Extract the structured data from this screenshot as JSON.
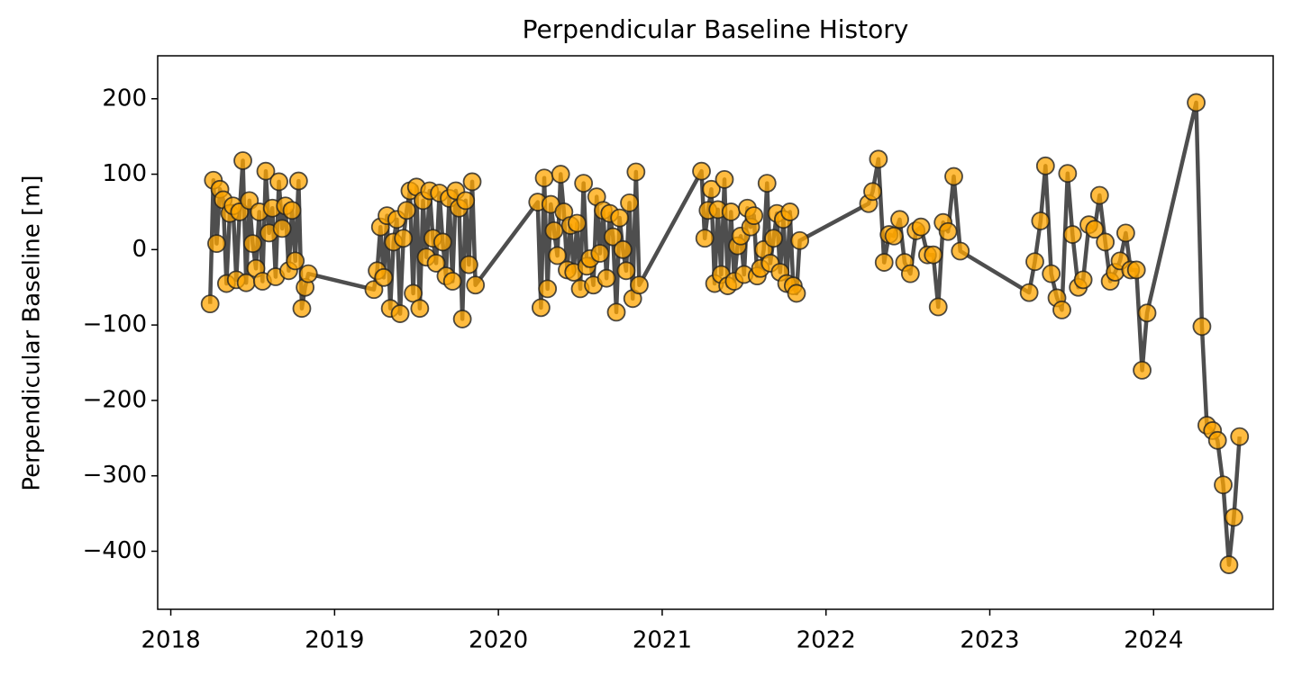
{
  "chart_data": {
    "type": "line",
    "title": "Perpendicular Baseline History",
    "y_label": "Perpendicular Baseline [m]",
    "x": [
      2018.24,
      2018.26,
      2018.28,
      2018.3,
      2018.32,
      2018.34,
      2018.36,
      2018.38,
      2018.4,
      2018.42,
      2018.44,
      2018.46,
      2018.48,
      2018.5,
      2018.52,
      2018.54,
      2018.56,
      2018.58,
      2018.6,
      2018.62,
      2018.64,
      2018.66,
      2018.68,
      2018.7,
      2018.72,
      2018.74,
      2018.76,
      2018.78,
      2018.8,
      2018.82,
      2018.84,
      2019.24,
      2019.26,
      2019.28,
      2019.3,
      2019.32,
      2019.34,
      2019.36,
      2019.38,
      2019.4,
      2019.42,
      2019.44,
      2019.46,
      2019.48,
      2019.5,
      2019.52,
      2019.54,
      2019.56,
      2019.58,
      2019.6,
      2019.62,
      2019.64,
      2019.66,
      2019.68,
      2019.7,
      2019.72,
      2019.74,
      2019.76,
      2019.78,
      2019.8,
      2019.82,
      2019.84,
      2019.86,
      2020.24,
      2020.26,
      2020.28,
      2020.3,
      2020.32,
      2020.34,
      2020.36,
      2020.38,
      2020.4,
      2020.42,
      2020.44,
      2020.46,
      2020.48,
      2020.5,
      2020.52,
      2020.54,
      2020.56,
      2020.58,
      2020.6,
      2020.62,
      2020.64,
      2020.66,
      2020.68,
      2020.7,
      2020.72,
      2020.74,
      2020.76,
      2020.78,
      2020.8,
      2020.82,
      2020.84,
      2020.86,
      2021.24,
      2021.26,
      2021.28,
      2021.3,
      2021.32,
      2021.34,
      2021.36,
      2021.38,
      2021.4,
      2021.42,
      2021.44,
      2021.46,
      2021.48,
      2021.5,
      2021.52,
      2021.54,
      2021.56,
      2021.58,
      2021.6,
      2021.62,
      2021.64,
      2021.66,
      2021.68,
      2021.7,
      2021.72,
      2021.74,
      2021.76,
      2021.78,
      2021.8,
      2021.82,
      2021.84,
      2022.26,
      2022.285,
      2022.32,
      2022.355,
      2022.385,
      2022.415,
      2022.45,
      2022.48,
      2022.515,
      2022.55,
      2022.58,
      2022.62,
      2022.655,
      2022.685,
      2022.715,
      2022.745,
      2022.78,
      2022.82,
      2023.24,
      2023.275,
      2023.31,
      2023.34,
      2023.375,
      2023.41,
      2023.44,
      2023.475,
      2023.505,
      2023.54,
      2023.57,
      2023.605,
      2023.64,
      2023.67,
      2023.705,
      2023.735,
      2023.765,
      2023.795,
      2023.83,
      2023.86,
      2023.895,
      2023.93,
      2023.96,
      2024.26,
      2024.295,
      2024.325,
      2024.36,
      2024.39,
      2024.425,
      2024.46,
      2024.49,
      2024.525
    ],
    "series": [
      {
        "color": "#ffa500",
        "line_color": "#444444",
        "values": [
          -72,
          92,
          8,
          80,
          66,
          -45,
          48,
          58,
          -40,
          50,
          118,
          -44,
          65,
          8,
          -25,
          50,
          -42,
          104,
          22,
          55,
          -36,
          90,
          28,
          58,
          -28,
          52,
          -15,
          91,
          -78,
          -50,
          -32,
          -53,
          -28,
          30,
          -37,
          45,
          -78,
          10,
          40,
          -85,
          15,
          52,
          78,
          -58,
          83,
          -78,
          65,
          -10,
          78,
          15,
          -18,
          75,
          10,
          -35,
          68,
          -42,
          78,
          55,
          -92,
          65,
          -20,
          90,
          -47,
          63,
          -77,
          95,
          -52,
          60,
          25,
          -8,
          100,
          50,
          -27,
          32,
          -30,
          35,
          -52,
          88,
          -22,
          -12,
          -47,
          70,
          -5,
          52,
          -38,
          48,
          17,
          -83,
          42,
          0,
          -28,
          62,
          -65,
          103,
          -47,
          104,
          15,
          52,
          80,
          -45,
          53,
          -33,
          93,
          -48,
          50,
          -42,
          5,
          18,
          -33,
          55,
          30,
          45,
          -35,
          -25,
          0,
          88,
          -18,
          15,
          48,
          -30,
          40,
          -45,
          50,
          -48,
          -58,
          12,
          61,
          77,
          120,
          -17,
          20,
          18,
          40,
          -17,
          -32,
          25,
          30,
          -7,
          -7,
          -76,
          36,
          24,
          97,
          -2,
          -57,
          -16,
          38,
          111,
          -32,
          -64,
          -80,
          101,
          20,
          -50,
          -40,
          33,
          27,
          72,
          10,
          -42,
          -30,
          -15,
          22,
          -27,
          -27,
          -160,
          -84,
          195,
          -102,
          -233,
          -240,
          -253,
          -312,
          -418,
          -355,
          -248
        ]
      }
    ],
    "xlim": [
      2017.92,
      2024.73
    ],
    "xticks": [
      2018,
      2019,
      2020,
      2021,
      2022,
      2023,
      2024
    ],
    "ylim": [
      -477,
      257
    ],
    "yticks": [
      {
        "value": -400,
        "label": "−400"
      },
      {
        "value": -300,
        "label": "−300"
      },
      {
        "value": -200,
        "label": "−200"
      },
      {
        "value": -100,
        "label": "−100"
      },
      0,
      100,
      200
    ],
    "grid": false
  }
}
